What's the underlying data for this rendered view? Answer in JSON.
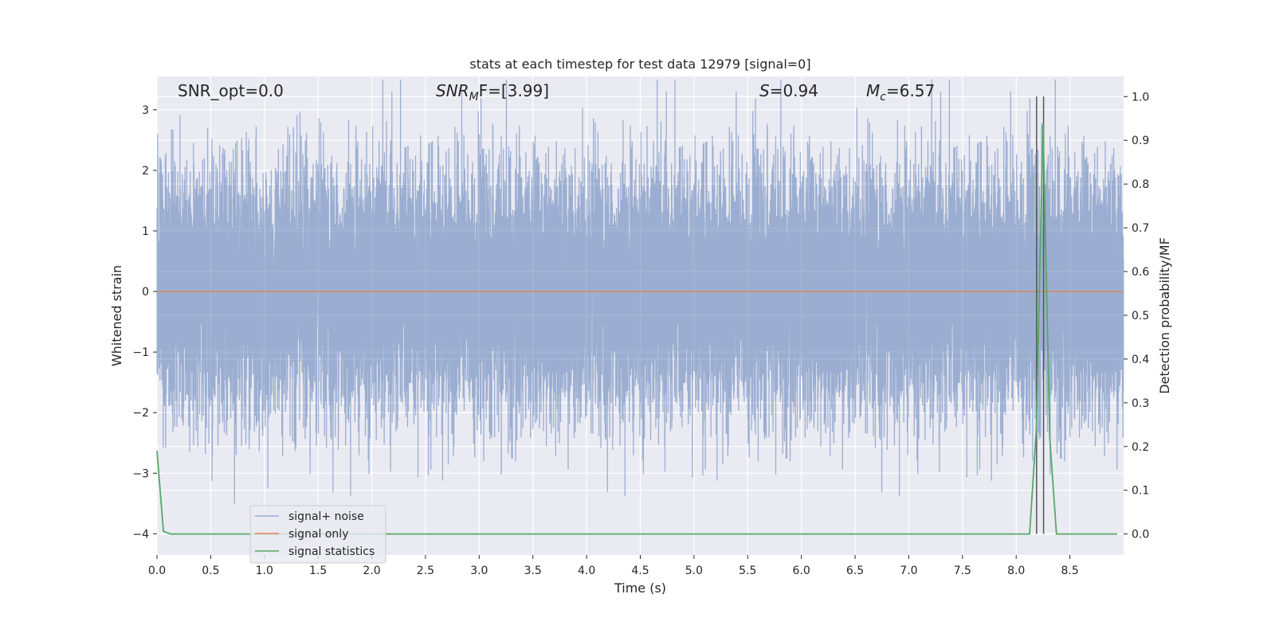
{
  "chart_data": {
    "type": "line",
    "title": "stats at each timestep for test data 12979 [signal=0]",
    "xlabel": "Time (s)",
    "ylabel": "Whitened strain",
    "y2label": "Detection probability/MF",
    "xlim": [
      0.0,
      9.0
    ],
    "ylim": [
      -4.35,
      3.55
    ],
    "y2lim": [
      -0.048,
      1.046
    ],
    "x_ticks": [
      0.0,
      0.5,
      1.0,
      1.5,
      2.0,
      2.5,
      3.0,
      3.5,
      4.0,
      4.5,
      5.0,
      5.5,
      6.0,
      6.5,
      7.0,
      7.5,
      8.0,
      8.5
    ],
    "x_tick_labels": [
      "0.0",
      "0.5",
      "1.0",
      "1.5",
      "2.0",
      "2.5",
      "3.0",
      "3.5",
      "4.0",
      "4.5",
      "5.0",
      "5.5",
      "6.0",
      "6.5",
      "7.0",
      "7.5",
      "8.0",
      "8.5"
    ],
    "y_ticks": [
      3,
      2,
      1,
      0,
      -1,
      -2,
      -3,
      -4
    ],
    "y_tick_labels": [
      "3",
      "2",
      "1",
      "0",
      "−1",
      "−2",
      "−3",
      "−4"
    ],
    "y2_ticks": [
      1.0,
      0.9,
      0.8,
      0.7,
      0.6,
      0.5,
      0.4,
      0.3,
      0.2,
      0.1,
      0.0
    ],
    "y2_tick_labels": [
      "1.0",
      "0.9",
      "0.8",
      "0.7",
      "0.6",
      "0.5",
      "0.4",
      "0.3",
      "0.2",
      "0.1",
      "0.0"
    ],
    "grid": true,
    "legend_placement": "lower-left",
    "annotations": {
      "snr_opt": "SNR_opt=0.0",
      "snr_mf_main": "SNR",
      "snr_mf_sub": "M",
      "snr_mf_rest": "F=[3.99]",
      "s_main": "S",
      "s_rest": "=0.94",
      "mc_main": "M",
      "mc_sub": "c",
      "mc_rest": "=6.57"
    },
    "series": [
      {
        "name": "signal+ noise",
        "color": "#4c72b0",
        "opacity": 0.5,
        "duration_s": 9.0,
        "sample_rate_hz": 2048,
        "noise_std": 1.0,
        "observed_max": 3.5,
        "observed_min": -4.0
      },
      {
        "name": "signal only",
        "color": "#dd8452",
        "constant_value": 0.0
      },
      {
        "name": "signal statistics",
        "color": "#55a868",
        "axis": "right",
        "x": [
          0.0,
          0.06,
          0.125,
          0.5,
          1.0,
          2.0,
          3.0,
          4.0,
          5.0,
          6.0,
          7.0,
          8.0,
          8.125,
          8.1875,
          8.25,
          8.3125,
          8.375,
          8.5,
          8.94
        ],
        "values": [
          0.19,
          0.006,
          0.0,
          0.0,
          0.0,
          0.0,
          0.0,
          0.0,
          0.0,
          0.0,
          0.0,
          0.0,
          0.0,
          0.24,
          0.94,
          0.22,
          0.0,
          0.0,
          0.0
        ]
      }
    ],
    "vertical_lines": {
      "color": "#555555",
      "x": [
        8.19,
        8.255
      ]
    }
  }
}
